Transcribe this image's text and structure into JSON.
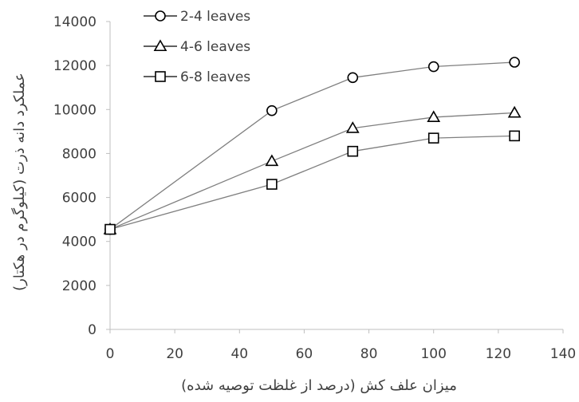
{
  "chart_data": {
    "type": "line",
    "xlabel": "میزان علف کش  (درصد از غلظت توصیه شده)",
    "ylabel": "عملکرد دانه ذرت (کیلوگرم در هکتار)",
    "xlim": [
      0,
      140
    ],
    "ylim": [
      0,
      14000
    ],
    "xticks": [
      0,
      20,
      40,
      60,
      80,
      100,
      120,
      140
    ],
    "yticks": [
      0,
      2000,
      4000,
      6000,
      8000,
      10000,
      12000,
      14000
    ],
    "grid": false,
    "legend_position": "top-left",
    "x": [
      0,
      50,
      75,
      100,
      125
    ],
    "series": [
      {
        "name": "2-4 leaves",
        "marker": "circle",
        "values": [
          4550,
          9950,
          11450,
          11950,
          12150
        ]
      },
      {
        "name": "4-6 leaves",
        "marker": "triangle",
        "values": [
          4550,
          7650,
          9150,
          9650,
          9850
        ]
      },
      {
        "name": "6-8 leaves",
        "marker": "square",
        "values": [
          4550,
          6600,
          8100,
          8700,
          8800
        ]
      }
    ],
    "line_color": "#7f7f7f",
    "marker_color": "#000000"
  }
}
